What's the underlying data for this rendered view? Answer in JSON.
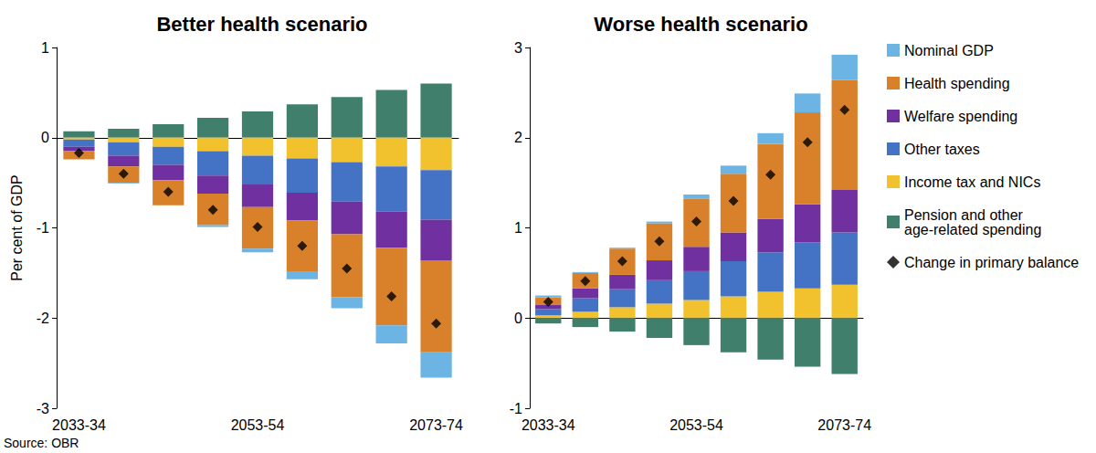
{
  "source": "Source: OBR",
  "chart_data": [
    {
      "type": "bar",
      "title": "Better health scenario",
      "ylabel": "Per cent of GDP",
      "stacked": true,
      "grid": false,
      "legend": "right",
      "categories": [
        "2033-34",
        null,
        null,
        null,
        "2053-54",
        null,
        null,
        null,
        "2073-74"
      ],
      "ylim": [
        -3,
        1
      ],
      "yticks": [
        -3,
        -2,
        -1,
        0,
        1
      ],
      "series": [
        {
          "name": "Nominal GDP",
          "type": "bar",
          "color": "#6cb4e4",
          "values": [
            0,
            -0.01,
            0,
            -0.02,
            -0.04,
            -0.09,
            -0.12,
            -0.2,
            -0.28
          ]
        },
        {
          "name": "Health spending",
          "type": "bar",
          "color": "#d9812a",
          "values": [
            -0.09,
            -0.18,
            -0.28,
            -0.35,
            -0.46,
            -0.56,
            -0.7,
            -0.86,
            -1.02
          ]
        },
        {
          "name": "Welfare spending",
          "type": "bar",
          "color": "#7030a0",
          "values": [
            -0.05,
            -0.12,
            -0.17,
            -0.2,
            -0.25,
            -0.31,
            -0.36,
            -0.4,
            -0.45
          ]
        },
        {
          "name": "Other taxes",
          "type": "bar",
          "color": "#4472c4",
          "values": [
            -0.08,
            -0.15,
            -0.2,
            -0.27,
            -0.32,
            -0.38,
            -0.44,
            -0.5,
            -0.55
          ]
        },
        {
          "name": "Income tax and NICs",
          "type": "bar",
          "color": "#f2c12e",
          "values": [
            -0.02,
            -0.05,
            -0.1,
            -0.15,
            -0.2,
            -0.23,
            -0.27,
            -0.32,
            -0.36
          ]
        },
        {
          "name": "Pension and other age-related spending",
          "type": "bar",
          "color": "#3f7f6b",
          "values": [
            0.07,
            0.1,
            0.15,
            0.22,
            0.29,
            0.37,
            0.45,
            0.53,
            0.6
          ]
        },
        {
          "name": "Change in primary balance",
          "type": "scatter",
          "marker": "diamond",
          "color": "#000000",
          "values": [
            -0.17,
            -0.4,
            -0.6,
            -0.8,
            -0.99,
            -1.2,
            -1.45,
            -1.76,
            -2.06
          ]
        }
      ]
    },
    {
      "type": "bar",
      "title": "Worse health scenario",
      "stacked": true,
      "grid": false,
      "legend": "right",
      "categories": [
        "2033-34",
        null,
        null,
        null,
        "2053-54",
        null,
        null,
        null,
        "2073-74"
      ],
      "ylim": [
        -1,
        3
      ],
      "yticks": [
        -1,
        0,
        1,
        2,
        3
      ],
      "series": [
        {
          "name": "Nominal GDP",
          "type": "bar",
          "color": "#6cb4e4",
          "values": [
            0.02,
            0.01,
            0.01,
            0.02,
            0.05,
            0.09,
            0.12,
            0.21,
            0.28
          ]
        },
        {
          "name": "Health spending",
          "type": "bar",
          "color": "#d9812a",
          "values": [
            0.08,
            0.17,
            0.29,
            0.41,
            0.53,
            0.65,
            0.83,
            1.02,
            1.22
          ]
        },
        {
          "name": "Welfare spending",
          "type": "bar",
          "color": "#7030a0",
          "values": [
            0.05,
            0.11,
            0.16,
            0.22,
            0.27,
            0.32,
            0.37,
            0.42,
            0.47
          ]
        },
        {
          "name": "Other taxes",
          "type": "bar",
          "color": "#4472c4",
          "values": [
            0.07,
            0.15,
            0.2,
            0.26,
            0.32,
            0.39,
            0.44,
            0.51,
            0.58
          ]
        },
        {
          "name": "Income tax and NICs",
          "type": "bar",
          "color": "#f2c12e",
          "values": [
            0.03,
            0.07,
            0.12,
            0.16,
            0.2,
            0.24,
            0.29,
            0.33,
            0.37
          ]
        },
        {
          "name": "Pension and other age-related spending",
          "type": "bar",
          "color": "#3f7f6b",
          "values": [
            -0.06,
            -0.1,
            -0.15,
            -0.22,
            -0.3,
            -0.38,
            -0.46,
            -0.54,
            -0.62
          ]
        },
        {
          "name": "Change in primary balance",
          "type": "scatter",
          "marker": "diamond",
          "color": "#000000",
          "values": [
            0.18,
            0.41,
            0.63,
            0.85,
            1.07,
            1.3,
            1.59,
            1.95,
            2.31
          ]
        }
      ]
    }
  ]
}
